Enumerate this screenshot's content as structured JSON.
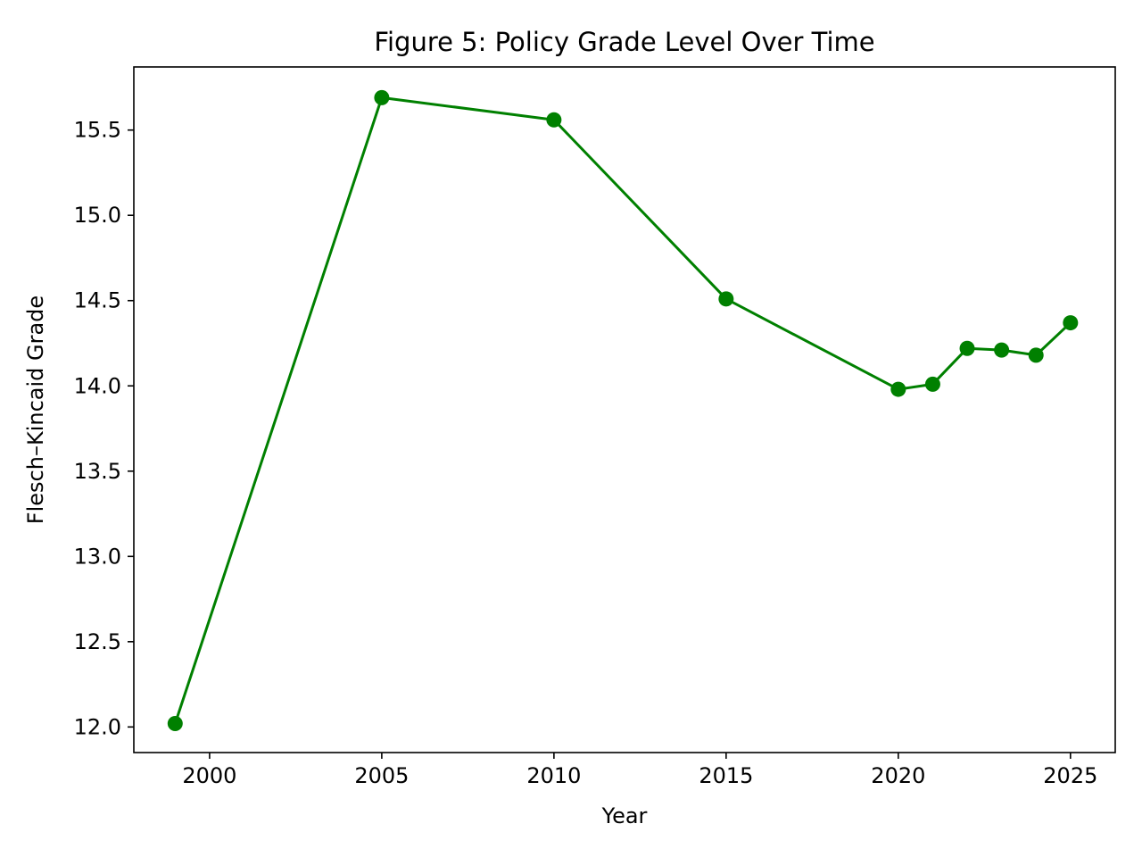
{
  "chart_data": {
    "type": "line",
    "title": "Figure 5: Policy Grade Level Over Time",
    "xlabel": "Year",
    "ylabel": "Flesch–Kincaid Grade",
    "xlim": [
      1997.8,
      2026.3
    ],
    "ylim": [
      11.85,
      15.87
    ],
    "xticks": [
      2000,
      2005,
      2010,
      2015,
      2020,
      2025
    ],
    "xtick_labels": [
      "2000",
      "2005",
      "2010",
      "2015",
      "2020",
      "2025"
    ],
    "yticks": [
      12.0,
      12.5,
      13.0,
      13.5,
      14.0,
      14.5,
      15.0,
      15.5
    ],
    "ytick_labels": [
      "12.0",
      "12.5",
      "13.0",
      "13.5",
      "14.0",
      "14.5",
      "15.0",
      "15.5"
    ],
    "grid": false,
    "series": [
      {
        "color": "#008000",
        "marker": "circle",
        "x": [
          1999,
          2005,
          2010,
          2015,
          2020,
          2021,
          2022,
          2023,
          2024,
          2025
        ],
        "y": [
          12.02,
          15.69,
          15.56,
          14.51,
          13.98,
          14.01,
          14.22,
          14.21,
          14.18,
          14.37
        ]
      }
    ]
  }
}
